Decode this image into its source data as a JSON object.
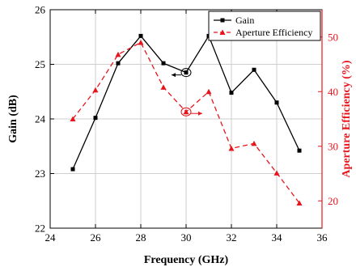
{
  "chart_data": {
    "type": "line",
    "xlabel": "Frequency (GHz)",
    "ylabel_left": "Gain (dB)",
    "ylabel_right": "Aperture Efficiency (%)",
    "xlim": [
      24,
      36
    ],
    "ylim_left": [
      22,
      26
    ],
    "ylim_right": [
      15,
      55
    ],
    "x_ticks": [
      "24",
      "26",
      "28",
      "30",
      "32",
      "34",
      "36"
    ],
    "y_left_ticks": [
      "22",
      "23",
      "24",
      "25",
      "26"
    ],
    "y_right_ticks": [
      "20",
      "30",
      "40",
      "50"
    ],
    "grid": true,
    "legend": "top-right",
    "series": [
      {
        "name": "Gain",
        "axis": "left",
        "color": "#000000",
        "line_style": "solid",
        "marker": "square",
        "x": [
          25,
          26,
          27,
          28,
          29,
          30,
          31,
          32,
          33,
          34,
          35
        ],
        "values": [
          23.08,
          24.02,
          25.02,
          25.52,
          25.02,
          24.85,
          25.52,
          24.48,
          24.9,
          24.3,
          23.42
        ]
      },
      {
        "name": "Aperture Efficiency",
        "axis": "right",
        "color": "#e8141c",
        "line_style": "dashed",
        "marker": "triangle",
        "x": [
          25,
          26,
          27,
          28,
          29,
          30,
          31,
          32,
          33,
          34,
          35
        ],
        "values": [
          35.0,
          40.3,
          46.8,
          49.0,
          40.8,
          36.3,
          40.0,
          29.6,
          30.5,
          25.1,
          19.6
        ]
      }
    ]
  }
}
